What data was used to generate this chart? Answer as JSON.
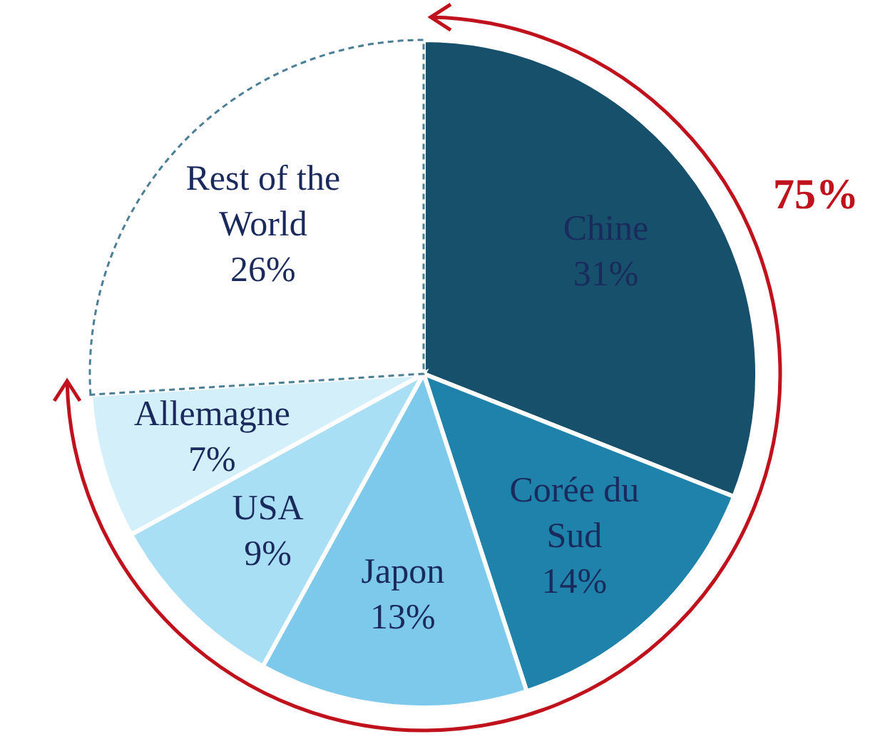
{
  "chart_data": {
    "type": "pie",
    "categories": [
      "Chine",
      "Corée du Sud",
      "Japon",
      "USA",
      "Allemagne",
      "Rest of the World"
    ],
    "values": [
      31,
      14,
      13,
      9,
      7,
      26
    ],
    "value_labels": [
      "31%",
      "14%",
      "13%",
      "9%",
      "7%",
      "26%"
    ],
    "colors": [
      "#16506b",
      "#1f82aa",
      "#7cc9ec",
      "#a9dff4",
      "#d3eff9",
      "#ffffff"
    ],
    "annotations": [
      "75%"
    ]
  }
}
